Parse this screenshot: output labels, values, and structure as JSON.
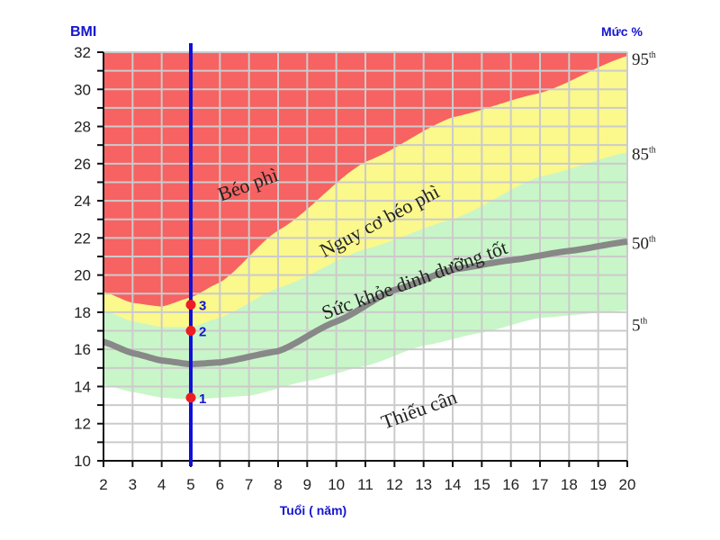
{
  "chart_data": {
    "type": "area",
    "ylabel": "BMI",
    "xlabel": "Tuổi ( năm)",
    "right_label": "Mức %",
    "xlim": [
      2,
      20
    ],
    "ylim": [
      10,
      32
    ],
    "x_ticks": [
      2,
      3,
      4,
      5,
      6,
      7,
      8,
      9,
      10,
      11,
      12,
      13,
      14,
      15,
      16,
      17,
      18,
      19,
      20
    ],
    "y_ticks": [
      10,
      12,
      14,
      16,
      18,
      20,
      22,
      24,
      26,
      28,
      30,
      32
    ],
    "grid": true,
    "percentile_curves": [
      {
        "name": "95",
        "sup": "th",
        "x": [
          2,
          3,
          4,
          5,
          6,
          8,
          11,
          14,
          17,
          20
        ],
        "y": [
          19.1,
          18.5,
          18.3,
          18.8,
          19.6,
          22.4,
          26.1,
          28.5,
          29.8,
          31.8
        ]
      },
      {
        "name": "85",
        "sup": "th",
        "x": [
          2,
          3,
          4,
          5,
          6,
          8,
          11,
          14,
          17,
          20
        ],
        "y": [
          18.1,
          17.5,
          17.2,
          17.2,
          17.7,
          19.3,
          21.4,
          23.0,
          25.3,
          26.6
        ]
      },
      {
        "name": "50",
        "sup": "th",
        "x": [
          2,
          3,
          4,
          5,
          6,
          8,
          10,
          12,
          14,
          16,
          18,
          20
        ],
        "y": [
          16.4,
          15.8,
          15.4,
          15.2,
          15.3,
          15.9,
          17.5,
          19.2,
          20.3,
          20.8,
          21.3,
          21.8
        ]
      },
      {
        "name": "5",
        "sup": "th",
        "x": [
          2,
          3,
          4,
          5,
          7,
          9,
          11,
          13,
          15,
          17,
          20
        ],
        "y": [
          14.1,
          13.7,
          13.4,
          13.3,
          13.5,
          14.3,
          15.1,
          16.2,
          16.9,
          17.7,
          18.1
        ]
      }
    ],
    "zones": [
      {
        "label": "Béo phì",
        "color": "#f76262"
      },
      {
        "label": "Nguy cơ béo phì",
        "color": "#fbf88c"
      },
      {
        "label": "Sức khỏe dinh dưỡng tốt",
        "color": "#c8f6c8"
      },
      {
        "label": "Thiếu cân",
        "color": "#ffffff"
      }
    ],
    "marker_line": {
      "x": 5,
      "color": "#1010d8"
    },
    "points": [
      {
        "label": "1",
        "x": 5,
        "y": 13.4
      },
      {
        "label": "2",
        "x": 5,
        "y": 17.0
      },
      {
        "label": "3",
        "x": 5,
        "y": 18.4
      }
    ],
    "median_color": "#888888",
    "point_color": "#ee1c24"
  }
}
